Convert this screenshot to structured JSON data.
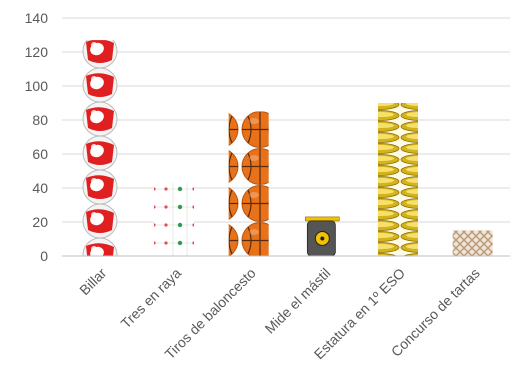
{
  "chart_data": {
    "type": "bar",
    "title": "",
    "xlabel": "",
    "ylabel": "",
    "ylim": [
      0,
      140
    ],
    "yticks": [
      0,
      20,
      40,
      60,
      80,
      100,
      120,
      140
    ],
    "grid": true,
    "legend": "none",
    "categories": [
      "Billar",
      "Tres en raya",
      "Tiros de baloncesto",
      "Mide el mástil",
      "Estatura en 1º ESO",
      "Concurso de tartas"
    ],
    "values": [
      127,
      43,
      85,
      23,
      90,
      15
    ],
    "fill_icons": [
      "billiard-ball-icon",
      "tic-tac-toe-icon",
      "basketball-icon",
      "tape-measure-icon",
      "coin-stack-icon",
      "cake-pattern-icon"
    ],
    "colors": {
      "billiard": "#e02020",
      "tictactoe_dot": "#2e9b4f",
      "tictactoe_red": "#e05050",
      "basketball": "#e8721a",
      "tape": "#f2c200",
      "coin": "#d4b21a",
      "cake": "#b89a7a"
    }
  }
}
